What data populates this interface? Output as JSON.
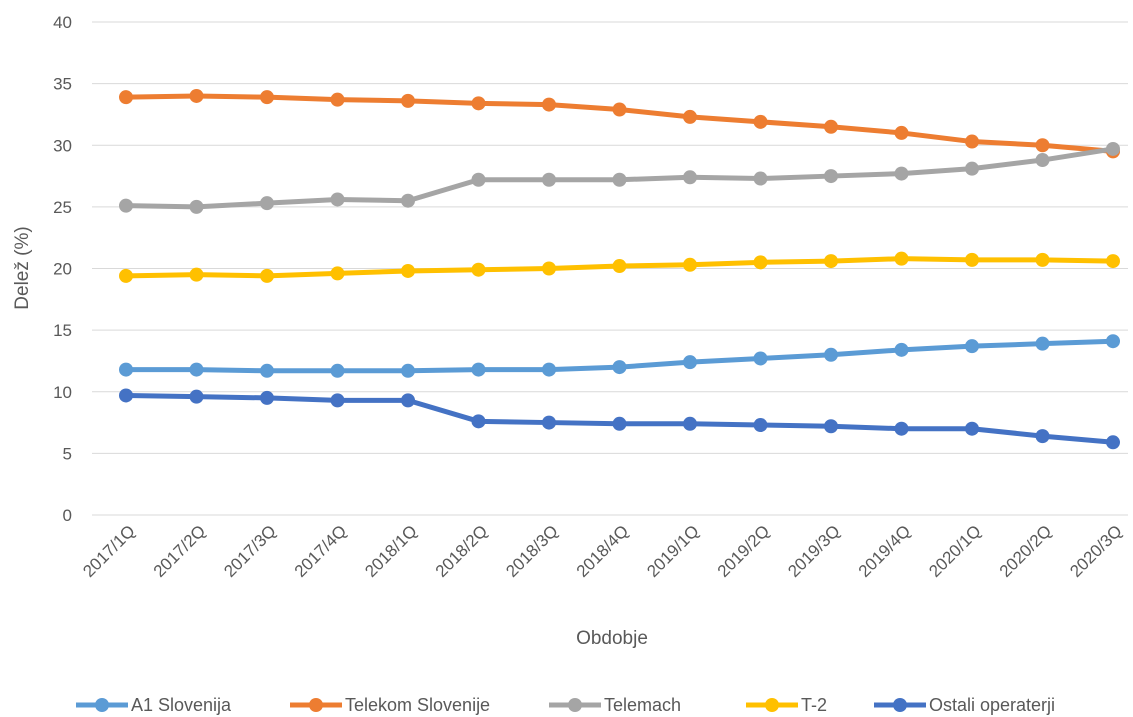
{
  "chart_data": {
    "type": "line",
    "title": "",
    "xlabel": "Obdobje",
    "ylabel": "Delež (%)",
    "ylim": [
      0,
      40
    ],
    "yticks": [
      0,
      5,
      10,
      15,
      20,
      25,
      30,
      35,
      40
    ],
    "grid": "horizontal",
    "legend_position": "bottom",
    "categories": [
      "2017/1Q",
      "2017/2Q",
      "2017/3Q",
      "2017/4Q",
      "2018/1Q",
      "2018/2Q",
      "2018/3Q",
      "2018/4Q",
      "2019/1Q",
      "2019/2Q",
      "2019/3Q",
      "2019/4Q",
      "2020/1Q",
      "2020/2Q",
      "2020/3Q"
    ],
    "series": [
      {
        "name": "A1 Slovenija",
        "color": "#5b9bd5",
        "values": [
          11.8,
          11.8,
          11.7,
          11.7,
          11.7,
          11.8,
          11.8,
          12.0,
          12.4,
          12.7,
          13.0,
          13.4,
          13.7,
          13.9,
          14.1
        ]
      },
      {
        "name": "Telekom Slovenije",
        "color": "#ed7d31",
        "values": [
          33.9,
          34.0,
          33.9,
          33.7,
          33.6,
          33.4,
          33.3,
          32.9,
          32.3,
          31.9,
          31.5,
          31.0,
          30.3,
          30.0,
          29.5
        ]
      },
      {
        "name": "Telemach",
        "color": "#a5a5a5",
        "values": [
          25.1,
          25.0,
          25.3,
          25.6,
          25.5,
          27.2,
          27.2,
          27.2,
          27.4,
          27.3,
          27.5,
          27.7,
          28.1,
          28.8,
          29.7
        ]
      },
      {
        "name": "T-2",
        "color": "#ffc000",
        "values": [
          19.4,
          19.5,
          19.4,
          19.6,
          19.8,
          19.9,
          20.0,
          20.2,
          20.3,
          20.5,
          20.6,
          20.8,
          20.7,
          20.7,
          20.6
        ]
      },
      {
        "name": "Ostali operaterji",
        "color": "#4472c4",
        "values": [
          9.7,
          9.6,
          9.5,
          9.3,
          9.3,
          7.6,
          7.5,
          7.4,
          7.4,
          7.3,
          7.2,
          7.0,
          7.0,
          6.4,
          5.9
        ]
      }
    ]
  }
}
